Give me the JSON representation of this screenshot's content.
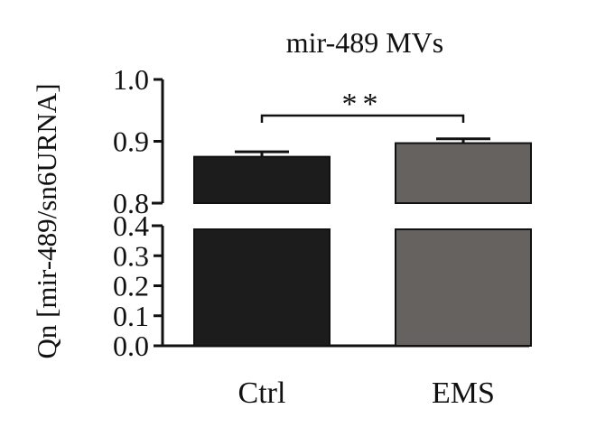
{
  "chart_data": {
    "type": "bar",
    "title": "mir-489 MVs",
    "ylabel": "Qn [mir-489/sn6URNA]",
    "xlabel": "",
    "categories": [
      "Ctrl",
      "EMS"
    ],
    "values": [
      0.875,
      0.897
    ],
    "error": [
      0.008,
      0.007
    ],
    "colors": [
      "#1c1c1c",
      "#666260"
    ],
    "y_axis_broken": true,
    "ylim_lower": [
      0.0,
      0.4
    ],
    "ylim_upper": [
      0.8,
      1.0
    ],
    "yticks_lower": [
      "0.0",
      "0.1",
      "0.2",
      "0.3",
      "0.4"
    ],
    "yticks_upper": [
      "0.8",
      "0.9",
      "1.0"
    ],
    "significance": {
      "between": [
        "Ctrl",
        "EMS"
      ],
      "label": "**"
    },
    "grid": false,
    "legend": "none"
  }
}
